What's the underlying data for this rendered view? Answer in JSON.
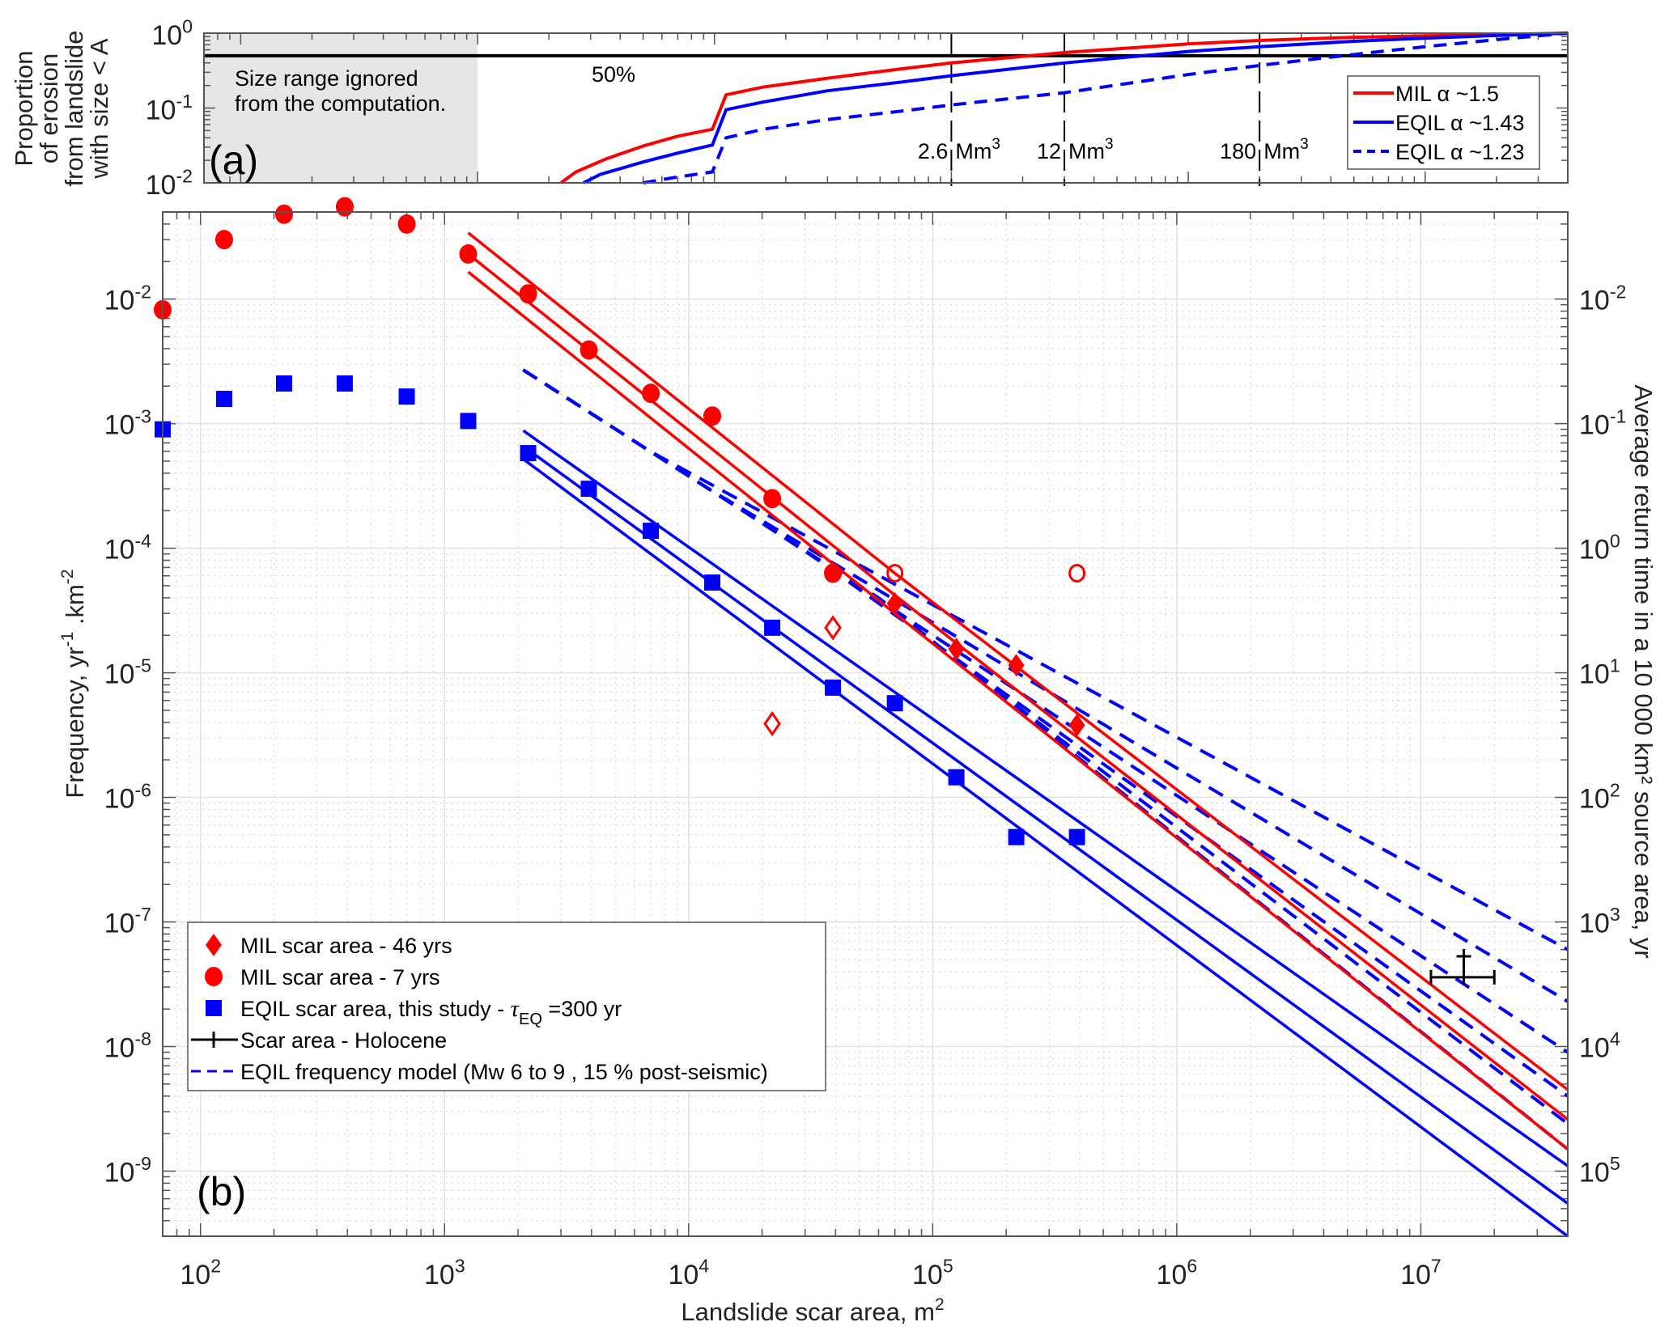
{
  "chart_data": [
    {
      "id": "panel_a",
      "type": "line",
      "panel_label": "(a)",
      "ylabel_lines": [
        "Proportion",
        "of erosion",
        "from landslide",
        "with size < A"
      ],
      "xscale": "log",
      "yscale": "log",
      "xlim": [
        70,
        40000000
      ],
      "ylim": [
        0.01,
        1
      ],
      "yticks": [
        {
          "value": 1,
          "base": "10",
          "exp": "0"
        },
        {
          "value": 0.1,
          "base": "10",
          "exp": "-1"
        },
        {
          "value": 0.01,
          "base": "10",
          "exp": "-2"
        }
      ],
      "shaded_region": {
        "x": [
          70,
          1000
        ],
        "label_lines": [
          "Size range ignored",
          "from the computation."
        ],
        "color": "#e6e6e6"
      },
      "hline": {
        "y": 0.5,
        "label": "50%",
        "color": "#000000"
      },
      "vlines": [
        {
          "x": 100000,
          "label": "2.6",
          "unit": "Mm",
          "sup": "3"
        },
        {
          "x": 300000,
          "label": "12",
          "unit": "Mm",
          "sup": "3"
        },
        {
          "x": 2000000,
          "label": "180",
          "unit": "Mm",
          "sup": "3"
        }
      ],
      "series": [
        {
          "name": "MIL α ~1.5",
          "legend_text": "MIL  α ~1.5",
          "color": "#ff0000",
          "dash": false,
          "points": [
            [
              2250,
              0.01
            ],
            [
              2600,
              0.014
            ],
            [
              3500,
              0.021
            ],
            [
              5000,
              0.031
            ],
            [
              7000,
              0.042
            ],
            [
              9800,
              0.052
            ],
            [
              11200,
              0.15
            ],
            [
              16000,
              0.19
            ],
            [
              30000,
              0.25
            ],
            [
              60000,
              0.33
            ],
            [
              100000,
              0.4
            ],
            [
              300000,
              0.55
            ],
            [
              1000000,
              0.72
            ],
            [
              2000000,
              0.8
            ],
            [
              5000000,
              0.88
            ],
            [
              10000000,
              0.92
            ],
            [
              20000000,
              0.96
            ],
            [
              40000000,
              1.0
            ]
          ]
        },
        {
          "name": "EQIL α ~1.43",
          "legend_text": "EQIL α ~1.43",
          "color": "#0000ff",
          "dash": false,
          "points": [
            [
              2800,
              0.01
            ],
            [
              3300,
              0.013
            ],
            [
              5000,
              0.019
            ],
            [
              7000,
              0.025
            ],
            [
              9800,
              0.032
            ],
            [
              11200,
              0.095
            ],
            [
              16000,
              0.12
            ],
            [
              30000,
              0.17
            ],
            [
              60000,
              0.22
            ],
            [
              100000,
              0.27
            ],
            [
              300000,
              0.4
            ],
            [
              1000000,
              0.57
            ],
            [
              2000000,
              0.66
            ],
            [
              5000000,
              0.78
            ],
            [
              10000000,
              0.86
            ],
            [
              20000000,
              0.93
            ],
            [
              40000000,
              1.0
            ]
          ]
        },
        {
          "name": "EQIL α ~1.23",
          "legend_text": "EQIL α ~1.23",
          "color": "#0000ff",
          "dash": true,
          "points": [
            [
              5000,
              0.01
            ],
            [
              7000,
              0.012
            ],
            [
              9800,
              0.014
            ],
            [
              11200,
              0.04
            ],
            [
              16000,
              0.052
            ],
            [
              30000,
              0.07
            ],
            [
              60000,
              0.09
            ],
            [
              100000,
              0.11
            ],
            [
              300000,
              0.16
            ],
            [
              1000000,
              0.28
            ],
            [
              2000000,
              0.37
            ],
            [
              5000000,
              0.52
            ],
            [
              10000000,
              0.66
            ],
            [
              20000000,
              0.82
            ],
            [
              40000000,
              1.0
            ]
          ]
        }
      ],
      "legend_position": "right"
    },
    {
      "id": "panel_b",
      "type": "scatter",
      "panel_label": "(b)",
      "xlabel": "Landslide scar area, m",
      "xlabel_sup": "2",
      "ylabel": "Frequency, yr",
      "ylabel_sup1": "-1",
      "ylabel_mid": " .km",
      "ylabel_sup2": "-2",
      "ylabel_right": "Average return time in a 10 000 km² source area, yr",
      "xscale": "log",
      "yscale": "log",
      "xlim": [
        70,
        40000000
      ],
      "ylim": [
        3e-10,
        0.05
      ],
      "grid": true,
      "xticks": [
        {
          "value": 100,
          "base": "10",
          "exp": "2"
        },
        {
          "value": 1000,
          "base": "10",
          "exp": "3"
        },
        {
          "value": 10000,
          "base": "10",
          "exp": "4"
        },
        {
          "value": 100000,
          "base": "10",
          "exp": "5"
        },
        {
          "value": 1000000,
          "base": "10",
          "exp": "6"
        },
        {
          "value": 10000000,
          "base": "10",
          "exp": "7"
        }
      ],
      "yticks": [
        {
          "value": 0.01,
          "base": "10",
          "exp": "-2"
        },
        {
          "value": 0.001,
          "base": "10",
          "exp": "-3"
        },
        {
          "value": 0.0001,
          "base": "10",
          "exp": "-4"
        },
        {
          "value": 1e-05,
          "base": "10",
          "exp": "-5"
        },
        {
          "value": 1e-06,
          "base": "10",
          "exp": "-6"
        },
        {
          "value": 1e-07,
          "base": "10",
          "exp": "-7"
        },
        {
          "value": 1e-08,
          "base": "10",
          "exp": "-8"
        },
        {
          "value": 1e-09,
          "base": "10",
          "exp": "-9"
        }
      ],
      "right_yticks": [
        {
          "freq": 0.01,
          "base": "10",
          "exp": "-2"
        },
        {
          "freq": 0.001,
          "base": "10",
          "exp": "-1"
        },
        {
          "freq": 0.0001,
          "base": "10",
          "exp": "0"
        },
        {
          "freq": 1e-05,
          "base": "10",
          "exp": "1"
        },
        {
          "freq": 1e-06,
          "base": "10",
          "exp": "2"
        },
        {
          "freq": 1e-07,
          "base": "10",
          "exp": "3"
        },
        {
          "freq": 1e-08,
          "base": "10",
          "exp": "4"
        },
        {
          "freq": 1e-09,
          "base": "10",
          "exp": "5"
        }
      ],
      "scatter_series": [
        {
          "name": "MIL scar area - 46 yrs",
          "marker": "diamond-filled",
          "color": "#ff0000",
          "points": [
            [
              70000,
              3.6e-05
            ],
            [
              125000,
              1.55e-05
            ],
            [
              220000,
              1.15e-05
            ],
            [
              390000,
              3.8e-06
            ]
          ]
        },
        {
          "name": "MIL scar area - 46 yrs (open)",
          "marker": "diamond-open",
          "color": "#ff0000",
          "in_legend": false,
          "points": [
            [
              22000,
              3.9e-06
            ],
            [
              39000,
              2.3e-05
            ]
          ]
        },
        {
          "name": "MIL scar area - 7 yrs",
          "marker": "circle-filled",
          "color": "#ff0000",
          "points": [
            [
              70,
              0.0082
            ],
            [
              125,
              0.03
            ],
            [
              220,
              0.048
            ],
            [
              390,
              0.055
            ],
            [
              700,
              0.04
            ],
            [
              1250,
              0.023
            ],
            [
              2200,
              0.011
            ],
            [
              3900,
              0.0039
            ],
            [
              7000,
              0.00175
            ],
            [
              12500,
              0.00115
            ],
            [
              22000,
              0.00025
            ],
            [
              39000,
              6.3e-05
            ]
          ]
        },
        {
          "name": "MIL scar area - 7 yrs (open)",
          "marker": "circle-open",
          "color": "#ff0000",
          "in_legend": false,
          "points": [
            [
              70000,
              6.3e-05
            ],
            [
              390000,
              6.3e-05
            ]
          ]
        },
        {
          "name": "EQIL scar area, this study - τEQ =300 yr",
          "marker": "square-filled",
          "color": "#0000ff",
          "points": [
            [
              70,
              0.0009
            ],
            [
              125,
              0.00158
            ],
            [
              220,
              0.0021
            ],
            [
              390,
              0.0021
            ],
            [
              700,
              0.00165
            ],
            [
              1250,
              0.00105
            ],
            [
              2200,
              0.00058
            ],
            [
              3900,
              0.0003
            ],
            [
              7000,
              0.000138
            ],
            [
              12500,
              5.3e-05
            ],
            [
              22000,
              2.3e-05
            ],
            [
              39000,
              7.6e-06
            ],
            [
              70000,
              5.7e-06
            ],
            [
              125000,
              1.45e-06
            ],
            [
              220000,
              4.8e-07
            ],
            [
              390000,
              4.8e-07
            ]
          ]
        }
      ],
      "fit_lines": [
        {
          "name": "MIL fit upper",
          "color": "#ff0000",
          "from": [
            1250,
            0.034
          ],
          "to": [
            12500,
            0.00116
          ],
          "kink_at": [
            70000,
            6.3e-05
          ],
          "end": [
            40000000,
            4.5e-09
          ]
        },
        {
          "name": "MIL fit central",
          "color": "#ff0000",
          "from": [
            1250,
            0.023
          ],
          "to": [
            12500,
            0.00078
          ],
          "kink_at": [
            70000,
            4.2e-05
          ],
          "end": [
            40000000,
            2.6e-09
          ]
        },
        {
          "name": "MIL fit lower",
          "color": "#ff0000",
          "from": [
            1250,
            0.0165
          ],
          "to": [
            12500,
            0.00056
          ],
          "kink_at": [
            70000,
            3e-05
          ],
          "end": [
            40000000,
            1.5e-09
          ]
        },
        {
          "name": "EQIL fit upper",
          "color": "#0000ff",
          "from": [
            2100,
            0.00088
          ],
          "end": [
            40000000,
            1.1e-09
          ]
        },
        {
          "name": "EQIL fit central",
          "color": "#0000ff",
          "from": [
            2100,
            0.00066
          ],
          "end": [
            40000000,
            5.5e-10
          ]
        },
        {
          "name": "EQIL fit lower",
          "color": "#0000ff",
          "from": [
            2100,
            0.00052
          ],
          "end": [
            40000000,
            3e-10
          ]
        }
      ],
      "model_lines": {
        "name": "EQIL frequency model (Mw 6 to 9 , 15 % post-seismic)",
        "color": "#0000ff",
        "start": [
          2100,
          0.0027
        ],
        "pivot_x": 2100,
        "end_values_at_xmax": [
          6e-08,
          2.3e-08,
          9e-09,
          4e-09,
          2.4e-09,
          1.5e-09
        ],
        "common_until": [
          [
            2100,
            0.0027
          ],
          [
            3500,
            0.00145
          ],
          [
            6000,
            0.00075
          ],
          [
            10000,
            0.00038
          ]
        ],
        "fan_start_x": [
          7000,
          12000,
          20000,
          30000,
          45000,
          60000
        ]
      },
      "errorbar": {
        "name": "Scar area - Holocene",
        "color": "#000000",
        "x": 15000000,
        "y": 3.6e-08,
        "xerr": [
          11000000,
          20000000
        ],
        "yerr_top": 5.3e-08
      },
      "legend": [
        {
          "marker": "diamond-filled",
          "color": "#ff0000",
          "text": "MIL scar area - 46 yrs"
        },
        {
          "marker": "circle-filled",
          "color": "#ff0000",
          "text": "MIL scar area - 7 yrs"
        },
        {
          "marker": "square-filled",
          "color": "#0000ff",
          "text": "EQIL scar area, this study - ",
          "tau": "τ",
          "tau_sub": "EQ",
          "tau_rest": " =300 yr"
        },
        {
          "marker": "errorbar",
          "color": "#000000",
          "text": "Scar area - Holocene"
        },
        {
          "marker": "dashed-line",
          "color": "#0000ff",
          "text": "EQIL frequency model (Mw 6 to 9 , 15 % post-seismic)"
        }
      ],
      "legend_position": "bottom-left"
    }
  ]
}
